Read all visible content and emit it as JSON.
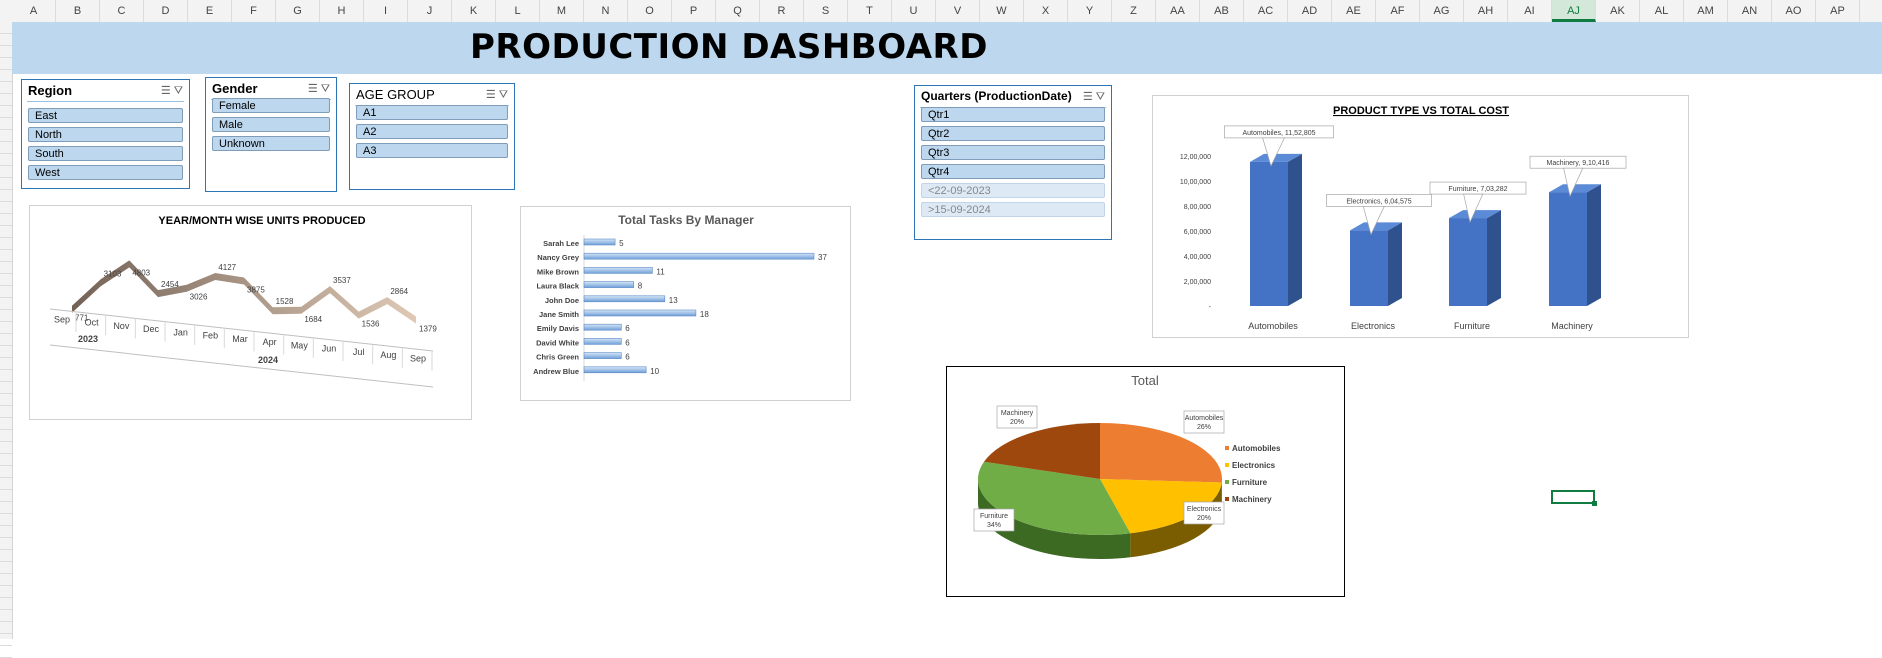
{
  "columns": [
    "A",
    "B",
    "C",
    "D",
    "E",
    "F",
    "G",
    "H",
    "I",
    "J",
    "K",
    "L",
    "M",
    "N",
    "O",
    "P",
    "Q",
    "R",
    "S",
    "T",
    "U",
    "V",
    "W",
    "X",
    "Y",
    "Z",
    "AA",
    "AB",
    "AC",
    "AD",
    "AE",
    "AF",
    "AG",
    "AH",
    "AI",
    "AJ",
    "AK",
    "AL",
    "AM",
    "AN",
    "AO",
    "AP"
  ],
  "selected_column": "AJ",
  "row_numbers": [
    "",
    "",
    "",
    "",
    "",
    "",
    "",
    "",
    "",
    "",
    "",
    "",
    "",
    "",
    "",
    "",
    "",
    "",
    "",
    "",
    "",
    "",
    "",
    "",
    "",
    "",
    "",
    "",
    "",
    "",
    "",
    "",
    "",
    "",
    "",
    "",
    "",
    "",
    "",
    "",
    "",
    "",
    "",
    "",
    "",
    "",
    "",
    "",
    "",
    "",
    "",
    "",
    ""
  ],
  "title": "PRODUCTION DASHBOARD",
  "slicers": {
    "region": {
      "title": "Region",
      "items": [
        "East",
        "North",
        "South",
        "West"
      ]
    },
    "gender": {
      "title": "Gender",
      "items": [
        "Female",
        "Male",
        "Unknown"
      ]
    },
    "age_group": {
      "title": "AGE GROUP",
      "items": [
        "A1",
        "A2",
        "A3"
      ]
    },
    "quarters": {
      "title": "Quarters (ProductionDate)",
      "items": [
        "Qtr1",
        "Qtr2",
        "Qtr3",
        "Qtr4"
      ],
      "dim_items": [
        "<22-09-2023",
        ">15-09-2024"
      ]
    }
  },
  "colors": {
    "banner": "#bdd7ee",
    "bar_blue": "#4472c4",
    "slicer_border": "#2e75b6",
    "pie_automobiles": "#ed7d31",
    "pie_electronics": "#ffc000",
    "pie_furniture": "#70ad47",
    "pie_machinery": "#9e480e"
  },
  "chart_data": [
    {
      "type": "line",
      "title": "YEAR/MONTH WISE UNITS PRODUCED",
      "categories": [
        "Sep",
        "Oct",
        "Nov",
        "Dec",
        "Jan",
        "Feb",
        "Mar",
        "Apr",
        "May",
        "Jun",
        "Jul",
        "Aug",
        "Sep"
      ],
      "groups": [
        {
          "label": "2023",
          "months": [
            "Sep",
            "Oct",
            "Nov",
            "Dec"
          ]
        },
        {
          "label": "2024",
          "months": [
            "Jan",
            "Feb",
            "Mar",
            "Apr",
            "May",
            "Jun",
            "Jul",
            "Aug",
            "Sep"
          ]
        }
      ],
      "values": [
        771,
        3103,
        4803,
        2454,
        3026,
        4127,
        3875,
        1528,
        1684,
        3537,
        1536,
        2864,
        1379
      ]
    },
    {
      "type": "bar",
      "orientation": "horizontal",
      "title": "Total Tasks By Manager",
      "categories": [
        "Sarah Lee",
        "Nancy Grey",
        "Mike Brown",
        "Laura Black",
        "John Doe",
        "Jane Smith",
        "Emily Davis",
        "David White",
        "Chris Green",
        "Andrew Blue"
      ],
      "values": [
        5,
        37,
        11,
        8,
        13,
        18,
        6,
        6,
        6,
        10
      ]
    },
    {
      "type": "bar",
      "title": "PRODUCT TYPE VS TOTAL COST",
      "categories": [
        "Automobiles",
        "Electronics",
        "Furniture",
        "Machinery"
      ],
      "values": [
        1152805,
        604575,
        703282,
        910416
      ],
      "value_labels": [
        "11,52,805",
        "6,04,575",
        "7,03,282",
        "9,10,416"
      ],
      "y_ticks": [
        "-",
        "2,00,000",
        "4,00,000",
        "6,00,000",
        "8,00,000",
        "10,00,000",
        "12,00,000"
      ],
      "ylim": [
        0,
        1200000
      ]
    },
    {
      "type": "pie",
      "title": "Total",
      "categories": [
        "Automobiles",
        "Electronics",
        "Furniture",
        "Machinery"
      ],
      "values": [
        26,
        20,
        34,
        20
      ],
      "value_labels": [
        "26%",
        "20%",
        "34%",
        "20%"
      ],
      "legend": "right"
    }
  ]
}
